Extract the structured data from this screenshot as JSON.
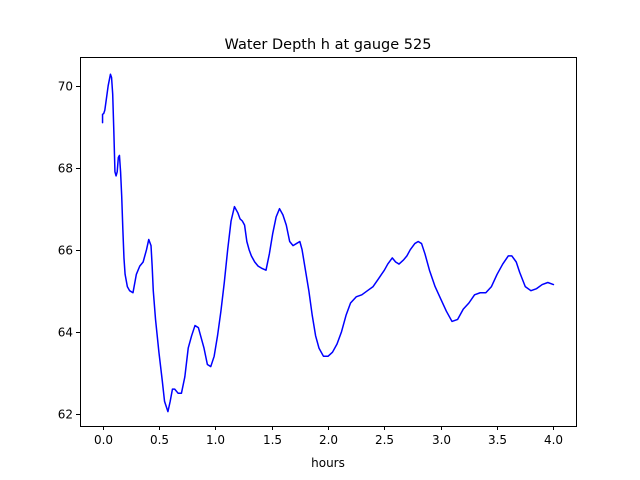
{
  "chart_data": {
    "type": "line",
    "title": "Water Depth h at gauge 525",
    "xlabel": "hours",
    "ylabel": "",
    "xlim": [
      -0.2,
      4.2
    ],
    "ylim": [
      61.7,
      70.7
    ],
    "xticks": [
      0.0,
      0.5,
      1.0,
      1.5,
      2.0,
      2.5,
      3.0,
      3.5,
      4.0
    ],
    "xtick_labels": [
      "0.0",
      "0.5",
      "1.0",
      "1.5",
      "2.0",
      "2.5",
      "3.0",
      "3.5",
      "4.0"
    ],
    "yticks": [
      62,
      64,
      66,
      68,
      70
    ],
    "ytick_labels": [
      "62",
      "64",
      "66",
      "68",
      "70"
    ],
    "grid": false,
    "line_color": "#0000ff",
    "series": [
      {
        "x": [
          0.0,
          0.0,
          0.01,
          0.02,
          0.03,
          0.05,
          0.07,
          0.08,
          0.09,
          0.1,
          0.11,
          0.12,
          0.13,
          0.14,
          0.15,
          0.16,
          0.17,
          0.18,
          0.19,
          0.2,
          0.22,
          0.24,
          0.27,
          0.3,
          0.33,
          0.36,
          0.39,
          0.41,
          0.43,
          0.44,
          0.45,
          0.47,
          0.5,
          0.53,
          0.55,
          0.58,
          0.6,
          0.62,
          0.64,
          0.67,
          0.7,
          0.73,
          0.76,
          0.79,
          0.82,
          0.85,
          0.87,
          0.9,
          0.93,
          0.96,
          0.99,
          1.02,
          1.05,
          1.08,
          1.11,
          1.14,
          1.17,
          1.2,
          1.22,
          1.24,
          1.26,
          1.28,
          1.3,
          1.32,
          1.35,
          1.38,
          1.41,
          1.45,
          1.48,
          1.51,
          1.54,
          1.57,
          1.6,
          1.63,
          1.66,
          1.69,
          1.72,
          1.75,
          1.77,
          1.8,
          1.83,
          1.86,
          1.89,
          1.92,
          1.96,
          2.0,
          2.04,
          2.08,
          2.12,
          2.16,
          2.2,
          2.25,
          2.3,
          2.35,
          2.4,
          2.45,
          2.5,
          2.53,
          2.57,
          2.6,
          2.63,
          2.67,
          2.7,
          2.73,
          2.77,
          2.8,
          2.83,
          2.86,
          2.9,
          2.95,
          3.0,
          3.05,
          3.1,
          3.15,
          3.2,
          3.25,
          3.3,
          3.35,
          3.4,
          3.45,
          3.5,
          3.55,
          3.6,
          3.63,
          3.67,
          3.7,
          3.75,
          3.8,
          3.85,
          3.9,
          3.95,
          4.0
        ],
        "values": [
          69.1,
          69.3,
          69.32,
          69.4,
          69.6,
          70.0,
          70.28,
          70.2,
          69.8,
          68.9,
          67.9,
          67.8,
          67.9,
          68.25,
          68.3,
          67.9,
          67.3,
          66.5,
          65.8,
          65.4,
          65.1,
          65.0,
          64.95,
          65.4,
          65.6,
          65.7,
          66.0,
          66.25,
          66.1,
          65.6,
          65.0,
          64.3,
          63.5,
          62.8,
          62.3,
          62.05,
          62.3,
          62.6,
          62.6,
          62.5,
          62.5,
          62.9,
          63.6,
          63.9,
          64.15,
          64.1,
          63.9,
          63.6,
          63.2,
          63.15,
          63.4,
          63.9,
          64.5,
          65.2,
          66.0,
          66.7,
          67.05,
          66.9,
          66.75,
          66.7,
          66.6,
          66.2,
          66.0,
          65.85,
          65.7,
          65.6,
          65.55,
          65.5,
          65.9,
          66.4,
          66.8,
          67.0,
          66.85,
          66.6,
          66.2,
          66.1,
          66.15,
          66.2,
          66.0,
          65.5,
          65.0,
          64.4,
          63.9,
          63.6,
          63.4,
          63.4,
          63.5,
          63.7,
          64.0,
          64.4,
          64.7,
          64.85,
          64.9,
          65.0,
          65.1,
          65.3,
          65.5,
          65.65,
          65.8,
          65.7,
          65.65,
          65.75,
          65.85,
          66.0,
          66.15,
          66.2,
          66.15,
          65.9,
          65.5,
          65.1,
          64.8,
          64.5,
          64.25,
          64.3,
          64.55,
          64.7,
          64.9,
          64.95,
          64.95,
          65.1,
          65.4,
          65.65,
          65.85,
          65.85,
          65.7,
          65.45,
          65.1,
          65.0,
          65.05,
          65.15,
          65.2,
          65.15
        ]
      }
    ]
  }
}
